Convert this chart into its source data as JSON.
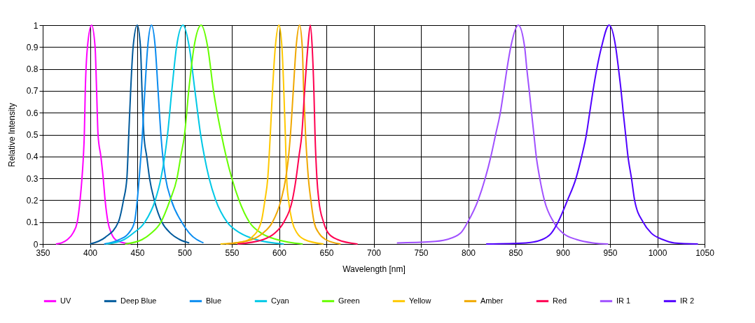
{
  "chart_data": {
    "type": "line",
    "xlabel": "Wavelength [nm]",
    "ylabel": "Relative Intensity",
    "xlim": [
      350,
      1050
    ],
    "xticks": [
      350,
      400,
      450,
      500,
      550,
      600,
      650,
      700,
      750,
      800,
      850,
      900,
      950,
      1000,
      1050
    ],
    "ylim": [
      0,
      1
    ],
    "yticks": [
      0,
      0.1,
      0.2,
      0.3,
      0.4,
      0.5,
      0.6,
      0.7,
      0.8,
      0.9,
      1
    ],
    "grid": true,
    "legend": "bottom",
    "marker": "none",
    "line_style": "solid",
    "series": [
      {
        "name": "UV",
        "color": "#ff00ff",
        "x": [
          364,
          370,
          376,
          382,
          386.5,
          389.5,
          391.5,
          393,
          394,
          395,
          397.3,
          401.7,
          405.4,
          407,
          408.5,
          411.5,
          414,
          416,
          419,
          422.5,
          427,
          436,
          443
        ],
        "values": [
          0,
          0.005,
          0.02,
          0.05,
          0.1,
          0.2,
          0.3,
          0.4,
          0.5,
          0.7,
          0.9,
          1,
          0.9,
          0.7,
          0.5,
          0.4,
          0.3,
          0.2,
          0.1,
          0.05,
          0.02,
          0.005,
          0
        ]
      },
      {
        "name": "Deep Blue",
        "color": "#005a9c",
        "x": [
          400,
          416,
          430,
          435.4,
          439,
          441,
          443,
          445.6,
          450,
          453.4,
          455,
          457,
          460,
          463,
          468,
          476,
          485,
          495,
          505
        ],
        "values": [
          0,
          0.03,
          0.1,
          0.2,
          0.3,
          0.5,
          0.7,
          0.9,
          1,
          0.9,
          0.7,
          0.5,
          0.4,
          0.3,
          0.2,
          0.1,
          0.05,
          0.02,
          0.005
        ]
      },
      {
        "name": "Blue",
        "color": "#0a8cf0",
        "x": [
          415,
          431,
          441,
          447,
          450,
          452,
          455.4,
          458,
          461,
          465,
          469,
          472,
          475,
          477,
          480,
          486,
          497,
          505,
          520
        ],
        "values": [
          0,
          0.02,
          0.05,
          0.1,
          0.2,
          0.3,
          0.5,
          0.7,
          0.9,
          1,
          0.9,
          0.7,
          0.5,
          0.4,
          0.3,
          0.2,
          0.1,
          0.05,
          0.005
        ]
      },
      {
        "name": "Cyan",
        "color": "#00c8e6",
        "x": [
          417,
          436,
          446,
          458,
          469,
          475,
          479,
          482,
          486.5,
          491.5,
          498.3,
          505,
          511,
          517,
          521,
          526,
          533,
          545,
          559,
          576,
          605
        ],
        "values": [
          0,
          0.02,
          0.05,
          0.1,
          0.2,
          0.3,
          0.4,
          0.5,
          0.7,
          0.9,
          1,
          0.9,
          0.7,
          0.5,
          0.4,
          0.3,
          0.2,
          0.1,
          0.05,
          0.02,
          0
        ]
      },
      {
        "name": "Green",
        "color": "#66ff00",
        "x": [
          437,
          455,
          465,
          475,
          484.6,
          492,
          496,
          500,
          504.4,
          510,
          517.6,
          524.5,
          530.6,
          539,
          544,
          550,
          557.6,
          568.6,
          581,
          598,
          625
        ],
        "values": [
          0,
          0.02,
          0.05,
          0.1,
          0.2,
          0.3,
          0.4,
          0.5,
          0.7,
          0.9,
          1,
          0.9,
          0.7,
          0.5,
          0.4,
          0.3,
          0.2,
          0.1,
          0.05,
          0.02,
          0
        ]
      },
      {
        "name": "Yellow",
        "color": "#ffc800",
        "x": [
          538,
          561,
          571,
          581,
          585,
          588,
          590.7,
          593,
          596,
          599.8,
          603,
          605,
          606.6,
          608,
          610,
          614,
          619,
          627,
          647
        ],
        "values": [
          0,
          0.01,
          0.03,
          0.1,
          0.2,
          0.3,
          0.5,
          0.7,
          0.9,
          1,
          0.9,
          0.7,
          0.5,
          0.3,
          0.2,
          0.1,
          0.05,
          0.02,
          0
        ]
      },
      {
        "name": "Amber",
        "color": "#f0a800",
        "x": [
          544,
          571,
          583,
          593,
          602,
          607,
          610,
          612,
          615,
          618,
          621.6,
          624.5,
          626,
          628,
          631,
          633.6,
          637,
          642,
          649.5,
          665
        ],
        "values": [
          0,
          0.02,
          0.05,
          0.1,
          0.2,
          0.3,
          0.4,
          0.5,
          0.7,
          0.9,
          1,
          0.9,
          0.7,
          0.5,
          0.3,
          0.2,
          0.1,
          0.05,
          0.02,
          0
        ]
      },
      {
        "name": "Red",
        "color": "#ff0050",
        "x": [
          556,
          583,
          595.6,
          605,
          614,
          618,
          621,
          624,
          627,
          630.4,
          633,
          635,
          636.8,
          638,
          640,
          642,
          647,
          652,
          662,
          683
        ],
        "values": [
          0,
          0.02,
          0.05,
          0.1,
          0.2,
          0.3,
          0.4,
          0.5,
          0.7,
          0.9,
          1,
          0.9,
          0.7,
          0.5,
          0.3,
          0.2,
          0.1,
          0.05,
          0.02,
          0
        ]
      },
      {
        "name": "IR 1",
        "color": "#a050ff",
        "x": [
          724.6,
          760,
          777,
          792,
          799.5,
          810.5,
          818,
          824,
          829,
          834,
          837.6,
          841,
          845,
          853,
          859.7,
          862,
          864.6,
          867,
          869.5,
          872,
          875.7,
          880.6,
          890.4,
          900,
          915,
          932,
          948
        ],
        "values": [
          0.005,
          0.01,
          0.02,
          0.05,
          0.1,
          0.2,
          0.3,
          0.4,
          0.5,
          0.6,
          0.7,
          0.8,
          0.9,
          1,
          0.9,
          0.8,
          0.7,
          0.6,
          0.5,
          0.4,
          0.3,
          0.2,
          0.1,
          0.05,
          0.02,
          0.005,
          0
        ]
      },
      {
        "name": "IR 2",
        "color": "#5000ff",
        "x": [
          819,
          861,
          878,
          888,
          895,
          905,
          914,
          920,
          925,
          928.5,
          932,
          936,
          941,
          949,
          956,
          959,
          961.7,
          964,
          966.5,
          969,
          972.7,
          976,
          985,
          993.6,
          1006,
          1018,
          1043
        ],
        "values": [
          0,
          0.005,
          0.02,
          0.05,
          0.1,
          0.2,
          0.3,
          0.4,
          0.5,
          0.6,
          0.7,
          0.8,
          0.9,
          1,
          0.9,
          0.8,
          0.7,
          0.6,
          0.5,
          0.4,
          0.3,
          0.2,
          0.1,
          0.05,
          0.02,
          0.005,
          0
        ]
      }
    ]
  }
}
